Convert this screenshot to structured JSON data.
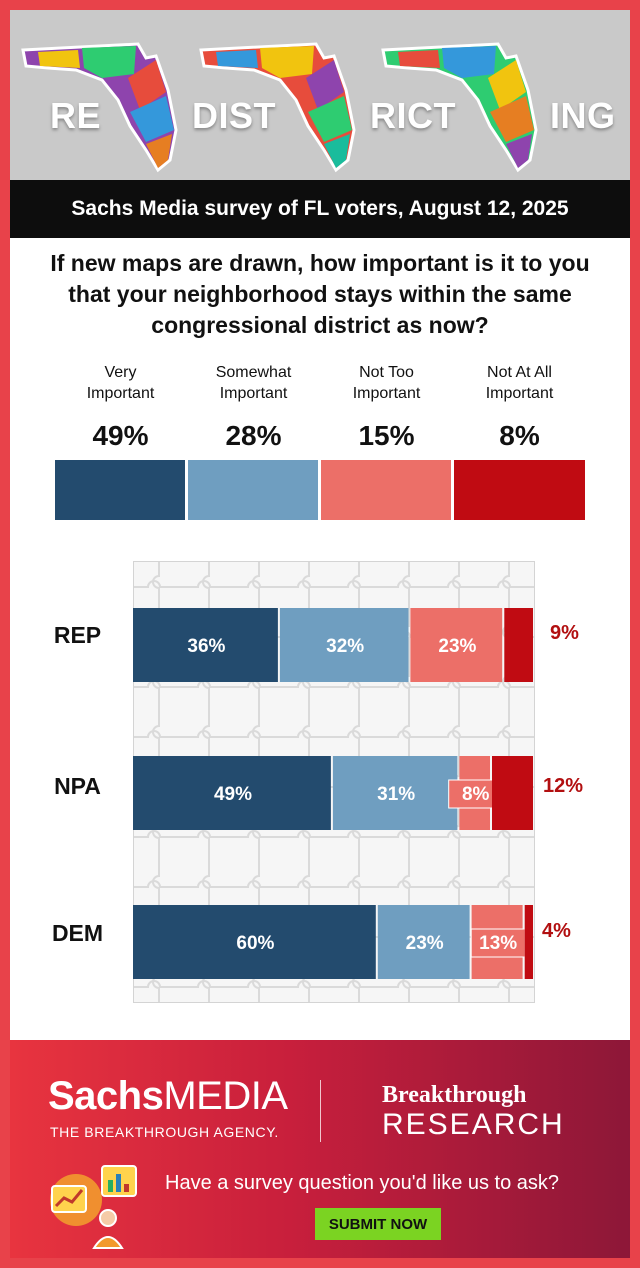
{
  "banner": {
    "words": [
      "RE",
      "DIST",
      "RICT",
      "ING"
    ]
  },
  "subtitle": "Sachs Media survey of FL voters, August 12, 2025",
  "question": "If new maps are drawn, how important is it to you that your neighborhood stays within the same congressional district as now?",
  "colors": {
    "very": "#234b6e",
    "somewhat": "#6f9ec0",
    "not_too": "#ec6f68",
    "not_at_all": "#c00b12"
  },
  "categories": [
    {
      "label_line1": "Very",
      "label_line2": "Important",
      "pct_label": "49%"
    },
    {
      "label_line1": "Somewhat",
      "label_line2": "Important",
      "pct_label": "28%"
    },
    {
      "label_line1": "Not Too",
      "label_line2": "Important",
      "pct_label": "15%"
    },
    {
      "label_line1": "Not At All",
      "label_line2": "Important",
      "pct_label": "8%"
    }
  ],
  "chart_data": {
    "type": "bar",
    "orientation": "horizontal",
    "stacked": true,
    "categories": [
      "REP",
      "NPA",
      "DEM"
    ],
    "series": [
      {
        "name": "Very Important",
        "values": [
          36,
          49,
          60
        ]
      },
      {
        "name": "Somewhat Important",
        "values": [
          32,
          31,
          23
        ]
      },
      {
        "name": "Not Too Important",
        "values": [
          23,
          8,
          13
        ]
      },
      {
        "name": "Not At All Important",
        "values": [
          9,
          12,
          4
        ]
      }
    ],
    "overall": [
      49,
      28,
      15,
      8
    ]
  },
  "footer": {
    "brand_sachs": "Sachs",
    "brand_media": "MEDIA",
    "tagline": "THE BREAKTHROUGH AGENCY.",
    "research_line1": "Breakthrough",
    "research_line2": "RESEARCH",
    "cta": "Have a survey question you'd like us to ask?",
    "submit_label": "SUBMIT NOW"
  }
}
